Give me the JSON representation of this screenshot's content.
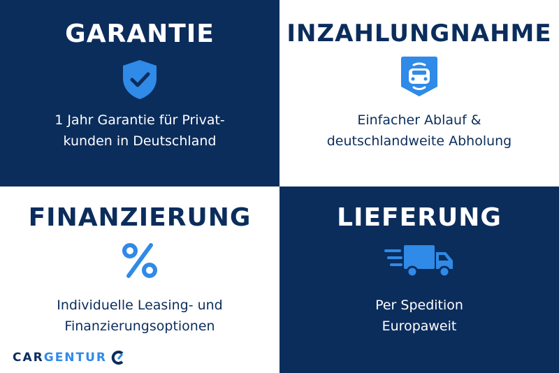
{
  "colors": {
    "navy": "#0b2d5c",
    "blue": "#2f8ae8",
    "white": "#ffffff"
  },
  "quadrants": [
    {
      "title": "GARANTIE",
      "icon": "shield-check-icon",
      "lines": [
        "1 Jahr Garantie für Privat-",
        "kunden in Deutschland"
      ]
    },
    {
      "title": "INZAHLUNGNAHME",
      "icon": "car-badge-icon",
      "lines": [
        "Einfacher Ablauf &",
        "deutschlandweite Abholung"
      ]
    },
    {
      "title": "FINANZIERUNG",
      "icon": "percent-icon",
      "lines": [
        "Individuelle Leasing- und",
        "Finanzierungsoptionen"
      ]
    },
    {
      "title": "LIEFERUNG",
      "icon": "delivery-truck-icon",
      "lines": [
        "Per Spedition",
        "Europaweit"
      ]
    }
  ],
  "logo": {
    "part1": "CAR",
    "part2": "GENTUR"
  }
}
